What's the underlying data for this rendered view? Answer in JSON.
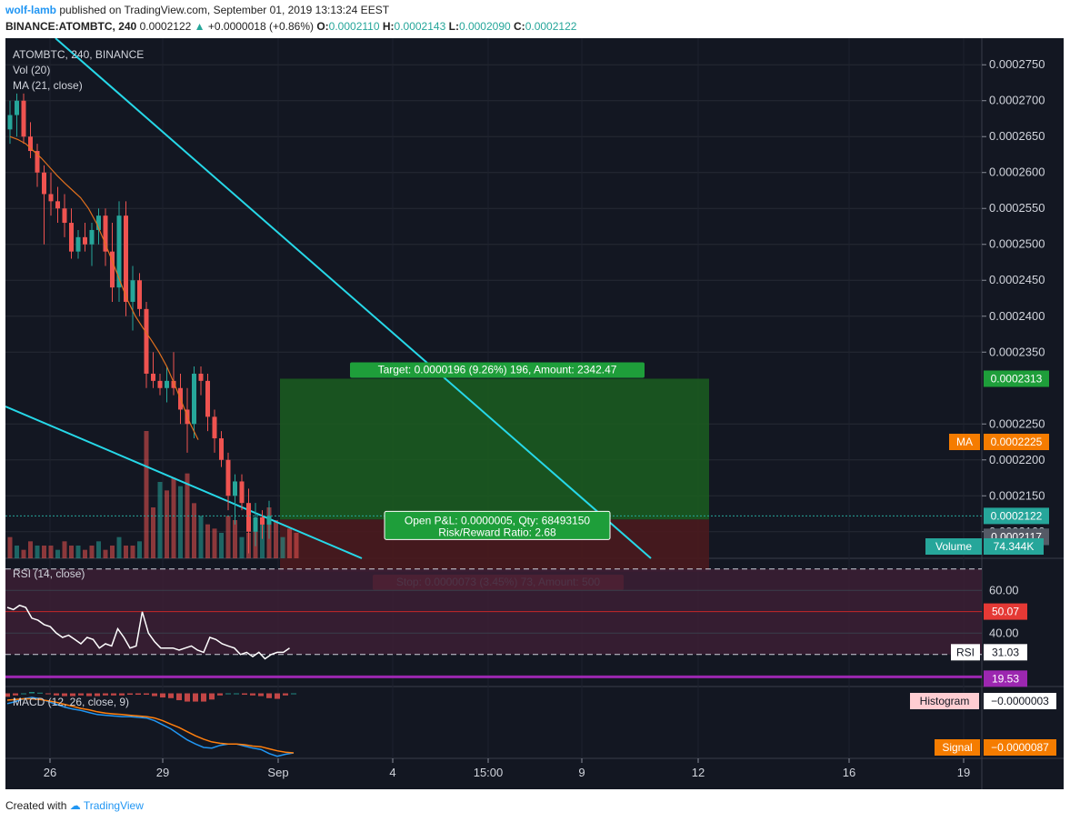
{
  "header": {
    "user": "wolf-lamb",
    "published_text": "published on TradingView.com, September 01, 2019 13:13:24 EEST",
    "ticker_line": "BINANCE:ATOMBTC, 240",
    "last": "0.0002122",
    "change": "+0.0000018 (+0.86%)",
    "open_label": "O:",
    "open": "0.0002110",
    "high_label": "H:",
    "high": "0.0002143",
    "low_label": "L:",
    "low": "0.0002090",
    "close_label": "C:",
    "close": "0.0002122"
  },
  "legend": {
    "symbol": "ATOMBTC, 240, BINANCE",
    "vol": "Vol (20)",
    "ma": "MA (21, close)",
    "rsi": "RSI (14, close)",
    "macd": "MACD (12, 26, close, 9)"
  },
  "footer": {
    "created_with": "Created with",
    "brand": "TradingView"
  },
  "colors": {
    "background": "#131722",
    "up": "#26a69a",
    "down": "#ef5350",
    "ma": "#e0701e",
    "trendline": "#26d8e8",
    "target_zone": "#1b5e20",
    "stop_zone": "#4a1a1e",
    "rsi_line": "#ffffff",
    "macd_line": "#2196f3",
    "signal_line": "#ff7f0e"
  },
  "chart_data": {
    "type": "candlestick",
    "price_axis_ticks": [
      "0.0002750",
      "0.0002700",
      "0.0002650",
      "0.0002600",
      "0.0002550",
      "0.0002500",
      "0.0002450",
      "0.0002400",
      "0.0002350",
      "0.0002250",
      "0.0002200",
      "0.0002150",
      "0.0002100"
    ],
    "time_axis_ticks": [
      "26",
      "29",
      "Sep",
      "4",
      "15:00",
      "9",
      "12",
      "16",
      "19"
    ],
    "price_range": [
      0.0002063,
      0.0002787
    ],
    "candles": [
      [
        0.000266,
        0.00027,
        0.000264,
        0.000268
      ],
      [
        0.000268,
        0.000271,
        0.000265,
        0.00027
      ],
      [
        0.00027,
        0.000271,
        0.000264,
        0.000265
      ],
      [
        0.000265,
        0.000267,
        0.000262,
        0.000263
      ],
      [
        0.000263,
        0.000264,
        0.000258,
        0.00026
      ],
      [
        0.00026,
        0.000261,
        0.00025,
        0.000257
      ],
      [
        0.000257,
        0.00026,
        0.000254,
        0.000256
      ],
      [
        0.000256,
        0.000258,
        0.000253,
        0.000255
      ],
      [
        0.000255,
        0.000257,
        0.000251,
        0.000253
      ],
      [
        0.000253,
        0.000255,
        0.000248,
        0.000249
      ],
      [
        0.000249,
        0.000252,
        0.000248,
        0.000251
      ],
      [
        0.000251,
        0.000253,
        0.000249,
        0.00025
      ],
      [
        0.00025,
        0.000253,
        0.000247,
        0.000252
      ],
      [
        0.000252,
        0.000255,
        0.00025,
        0.000254
      ],
      [
        0.000254,
        0.000255,
        0.000247,
        0.000249
      ],
      [
        0.000249,
        0.000253,
        0.000242,
        0.000244
      ],
      [
        0.000244,
        0.000256,
        0.000242,
        0.000254
      ],
      [
        0.000254,
        0.000256,
        0.00024,
        0.000242
      ],
      [
        0.000242,
        0.000247,
        0.000238,
        0.000245
      ],
      [
        0.000245,
        0.000246,
        0.00024,
        0.000241
      ],
      [
        0.000241,
        0.000242,
        0.00023,
        0.000232
      ],
      [
        0.000232,
        0.000235,
        0.00023,
        0.000231
      ],
      [
        0.000231,
        0.000232,
        0.000229,
        0.00023
      ],
      [
        0.00023,
        0.000233,
        0.000228,
        0.000231
      ],
      [
        0.000231,
        0.000235,
        0.000229,
        0.00023
      ],
      [
        0.00023,
        0.000232,
        0.000225,
        0.000227
      ],
      [
        0.000227,
        0.00023,
        0.000221,
        0.000225
      ],
      [
        0.000225,
        0.000233,
        0.000223,
        0.000232
      ],
      [
        0.000232,
        0.000233,
        0.000229,
        0.000231
      ],
      [
        0.000231,
        0.000232,
        0.000224,
        0.000226
      ],
      [
        0.000226,
        0.000227,
        0.000221,
        0.000223
      ],
      [
        0.000223,
        0.000224,
        0.000219,
        0.00022
      ],
      [
        0.00022,
        0.000221,
        0.000213,
        0.000215
      ],
      [
        0.000215,
        0.000218,
        0.000211,
        0.000217
      ],
      [
        0.000217,
        0.000218,
        0.000213,
        0.000214
      ],
      [
        0.000214,
        0.000216,
        0.000207,
        0.00021
      ],
      [
        0.00021,
        0.000214,
        0.000208,
        0.000212
      ],
      [
        0.000212,
        0.000213,
        0.000209,
        0.000211
      ],
      [
        0.000211,
        0.0002143,
        0.000209,
        0.0002122
      ]
    ],
    "ma": [
      0.000265,
      0.0002646,
      0.000264,
      0.000263,
      0.000262,
      0.0002608,
      0.0002596,
      0.0002585,
      0.0002575,
      0.0002565,
      0.000255,
      0.000253,
      0.0002505,
      0.0002478,
      0.000245,
      0.0002422,
      0.00024,
      0.0002383,
      0.0002367,
      0.000235,
      0.000233,
      0.0002305,
      0.0002278,
      0.000225,
      0.0002228
    ],
    "volume": [
      0.5,
      0.3,
      0.2,
      0.4,
      0.3,
      0.3,
      0.3,
      0.2,
      0.4,
      0.3,
      0.3,
      0.2,
      0.3,
      0.4,
      0.2,
      0.3,
      0.5,
      0.3,
      0.3,
      0.4,
      3.0,
      1.2,
      1.8,
      1.6,
      1.9,
      1.7,
      2.0,
      1.3,
      1.0,
      0.8,
      0.7,
      0.6,
      1.0,
      0.9,
      0.5,
      0.6,
      0.8,
      0.9,
      1.2,
      0.9,
      0.5,
      0.7,
      0.6
    ],
    "volume_label": "Volume",
    "volume_value": "74.344K",
    "position": {
      "entry": 0.0002117,
      "target_price": 0.0002313,
      "stop_price": 0.0002044,
      "target_text": "Target: 0.0000196 (9.26%) 196, Amount: 2342.47",
      "stop_text": "Stop: 0.0000073 (3.45%) 73, Amount: 500",
      "pl_text": "Open P&L: 0.0000005, Qty: 68493150",
      "rr_text": "Risk/Reward Ratio: 2.68"
    },
    "price_labels": {
      "target": "0.0002313",
      "ma_label": "MA",
      "ma_value": "0.0002225",
      "last": "0.0002122",
      "countdown": "01:46:37",
      "entry": "0.0002117"
    },
    "rsi": {
      "ticks": [
        "60.00",
        "40.00"
      ],
      "range": [
        15,
        75
      ],
      "upper_band": 70,
      "lower_band": 30,
      "values": [
        52,
        51,
        53,
        52,
        47,
        46,
        44,
        43,
        40,
        38,
        39,
        37,
        35,
        38,
        37,
        33,
        35,
        34,
        42,
        38,
        33,
        34,
        50,
        40,
        36,
        33,
        33,
        33,
        32,
        33,
        34,
        32,
        31,
        38,
        37,
        35,
        34,
        33,
        30,
        31,
        29,
        31,
        28,
        30,
        31,
        31,
        33
      ],
      "label_value": "50.07",
      "rsi_label": "RSI",
      "rsi_value": "31.03",
      "purple_value": "19.53"
    },
    "macd": {
      "histogram_label": "Histogram",
      "histogram_value": "−0.0000003",
      "signal_label": "Signal",
      "signal_value": "−0.0000087",
      "range": [
        -9.5e-06,
        1e-06
      ],
      "macd_line": [
        -1.5e-06,
        -1.2e-06,
        -8e-07,
        -6e-07,
        -8e-07,
        -1.2e-06,
        -1.6e-06,
        -2e-06,
        -2.3e-06,
        -2.5e-06,
        -2.8e-06,
        -3.1e-06,
        -3.2e-06,
        -3.3e-06,
        -3.4e-06,
        -3.4e-06,
        -3.5e-06,
        -3.6e-06,
        -4e-06,
        -4.6e-06,
        -5.2e-06,
        -6e-06,
        -6.8e-06,
        -7.4e-06,
        -7.9e-06,
        -8e-06,
        -7.6e-06,
        -7.4e-06,
        -7.4e-06,
        -7.7e-06,
        -8e-06,
        -8.2e-06,
        -8.8e-06,
        -9.2e-06,
        -8.9e-06,
        -8.7e-06
      ],
      "signal_line": [
        -1e-06,
        -9e-07,
        -8e-07,
        -8e-07,
        -9e-07,
        -1.1e-06,
        -1.3e-06,
        -1.6e-06,
        -1.9e-06,
        -2.2e-06,
        -2.4e-06,
        -2.7e-06,
        -2.9e-06,
        -3e-06,
        -3.1e-06,
        -3.2e-06,
        -3.3e-06,
        -3.4e-06,
        -3.6e-06,
        -4e-06,
        -4.5e-06,
        -5e-06,
        -5.6e-06,
        -6.2e-06,
        -6.7e-06,
        -7.1e-06,
        -7.3e-06,
        -7.4e-06,
        -7.4e-06,
        -7.5e-06,
        -7.7e-06,
        -7.8e-06,
        -8.1e-06,
        -8.4e-06,
        -8.6e-06,
        -8.7e-06
      ]
    }
  }
}
